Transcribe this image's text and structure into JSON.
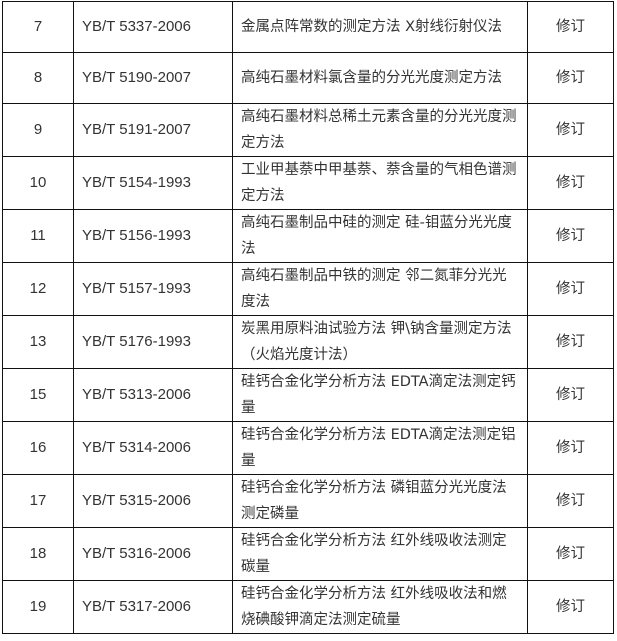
{
  "table": {
    "rows": [
      {
        "no": "7",
        "code": "YB/T 5337-2006",
        "name": "金属点阵常数的测定方法 X射线衍射仪法",
        "type": "修订"
      },
      {
        "no": "8",
        "code": "YB/T 5190-2007",
        "name": "高纯石墨材料氯含量的分光光度测定方法",
        "type": "修订"
      },
      {
        "no": "9",
        "code": "YB/T 5191-2007",
        "name": "高纯石墨材料总稀土元素含量的分光光度测定方法",
        "type": "修订"
      },
      {
        "no": "10",
        "code": "YB/T 5154-1993",
        "name": "工业甲基萘中甲基萘、萘含量的气相色谱测定方法",
        "type": "修订"
      },
      {
        "no": "11",
        "code": "YB/T 5156-1993",
        "name": "高纯石墨制品中硅的测定 硅-钼蓝分光光度法",
        "type": "修订"
      },
      {
        "no": "12",
        "code": "YB/T 5157-1993",
        "name": "高纯石墨制品中铁的测定 邻二氮菲分光光度法",
        "type": "修订"
      },
      {
        "no": "13",
        "code": "YB/T 5176-1993",
        "name": "炭黑用原料油试验方法 钾\\钠含量测定方法（火焰光度计法）",
        "type": "修订"
      },
      {
        "no": "15",
        "code": "YB/T 5313-2006",
        "name": "硅钙合金化学分析方法 EDTA滴定法测定钙量",
        "type": "修订"
      },
      {
        "no": "16",
        "code": "YB/T 5314-2006",
        "name": "硅钙合金化学分析方法 EDTA滴定法测定铝量",
        "type": "修订"
      },
      {
        "no": "17",
        "code": "YB/T 5315-2006",
        "name": "硅钙合金化学分析方法 磷钼蓝分光光度法测定磷量",
        "type": "修订"
      },
      {
        "no": "18",
        "code": "YB/T 5316-2006",
        "name": "硅钙合金化学分析方法 红外线吸收法测定碳量",
        "type": "修订"
      },
      {
        "no": "19",
        "code": "YB/T 5317-2006",
        "name": "硅钙合金化学分析方法 红外线吸收法和燃烧碘酸钾滴定法测定硫量",
        "type": "修订"
      }
    ]
  }
}
